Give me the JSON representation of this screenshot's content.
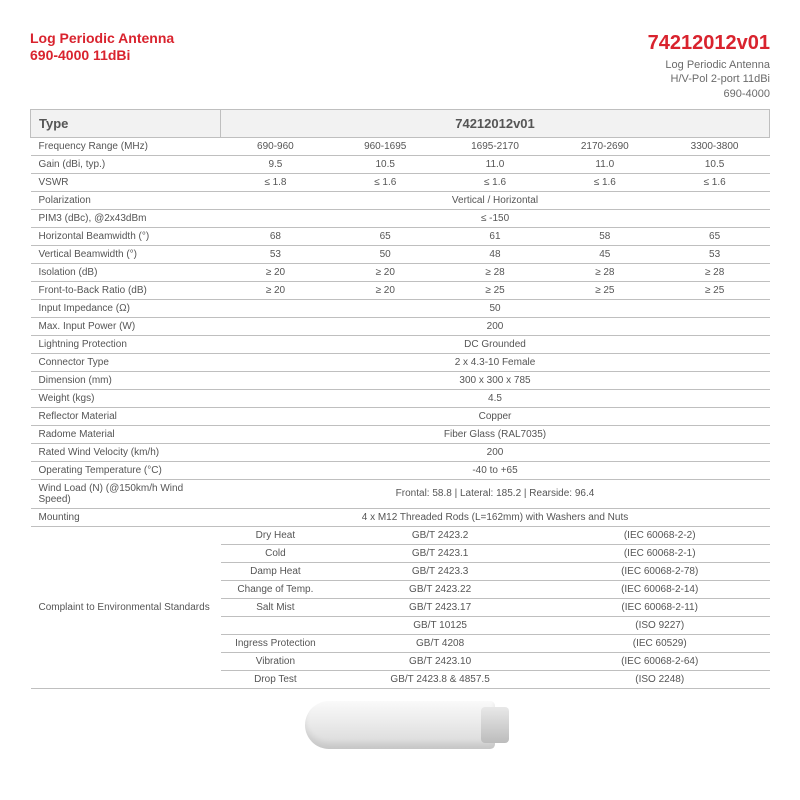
{
  "header": {
    "left_line1": "Log Periodic Antenna",
    "left_line2": "690-4000 11dBi",
    "model": "74212012v01",
    "right_line1": "Log Periodic Antenna",
    "right_line2": "H/V-Pol 2-port 11dBi",
    "right_line3": "690-4000"
  },
  "type_label": "Type",
  "type_value": "74212012v01",
  "multi_rows": [
    {
      "label": "Frequency Range (MHz)",
      "cells": [
        "690-960",
        "960-1695",
        "1695-2170",
        "2170-2690",
        "3300-3800"
      ]
    },
    {
      "label": "Gain (dBi, typ.)",
      "cells": [
        "9.5",
        "10.5",
        "11.0",
        "11.0",
        "10.5"
      ]
    },
    {
      "label": "VSWR",
      "cells": [
        "≤ 1.8",
        "≤ 1.6",
        "≤ 1.6",
        "≤ 1.6",
        "≤ 1.6"
      ]
    }
  ],
  "polarization": {
    "label": "Polarization",
    "value": "Vertical / Horizontal"
  },
  "pim": {
    "label": "PIM3 (dBc), @2x43dBm",
    "value": "≤ -150"
  },
  "multi_rows2": [
    {
      "label": "Horizontal Beamwidth (°)",
      "cells": [
        "68",
        "65",
        "61",
        "58",
        "65"
      ]
    },
    {
      "label": "Vertical Beamwidth (°)",
      "cells": [
        "53",
        "50",
        "48",
        "45",
        "53"
      ]
    },
    {
      "label": "Isolation (dB)",
      "cells": [
        "≥ 20",
        "≥ 20",
        "≥ 28",
        "≥ 28",
        "≥ 28"
      ]
    },
    {
      "label": "Front-to-Back Ratio (dB)",
      "cells": [
        "≥ 20",
        "≥ 20",
        "≥ 25",
        "≥ 25",
        "≥ 25"
      ]
    }
  ],
  "single_rows": [
    {
      "label": "Input Impedance (Ω)",
      "value": "50"
    },
    {
      "label": "Max. Input Power (W)",
      "value": "200"
    },
    {
      "label": "Lightning Protection",
      "value": "DC Grounded"
    },
    {
      "label": "Connector Type",
      "value": "2 x 4.3-10 Female"
    },
    {
      "label": "Dimension (mm)",
      "value": "300 x 300 x 785"
    },
    {
      "label": "Weight (kgs)",
      "value": "4.5"
    },
    {
      "label": "Reflector Material",
      "value": "Copper"
    },
    {
      "label": "Radome Material",
      "value": "Fiber Glass (RAL7035)"
    },
    {
      "label": "Rated Wind Velocity (km/h)",
      "value": "200"
    },
    {
      "label": "Operating Temperature (°C)",
      "value": "-40 to +65"
    },
    {
      "label": "Wind Load (N) (@150km/h Wind Speed)",
      "value": "Frontal: 58.8 | Lateral: 185.2 | Rearside: 96.4"
    },
    {
      "label": "Mounting",
      "value": "4 x M12 Threaded Rods (L=162mm) with Washers and Nuts"
    }
  ],
  "env": {
    "label": "Complaint to Environmental Standards",
    "rows": [
      {
        "name": "Dry Heat",
        "std": "GB/T 2423.2",
        "iec": "(IEC 60068-2-2)"
      },
      {
        "name": "Cold",
        "std": "GB/T 2423.1",
        "iec": "(IEC 60068-2-1)"
      },
      {
        "name": "Damp Heat",
        "std": "GB/T 2423.3",
        "iec": "(IEC 60068-2-78)"
      },
      {
        "name": "Change of Temp.",
        "std": "GB/T 2423.22",
        "iec": "(IEC 60068-2-14)"
      },
      {
        "name": "Salt Mist",
        "std": "GB/T 2423.17",
        "iec": "(IEC 60068-2-11)"
      },
      {
        "name": "",
        "std": "GB/T 10125",
        "iec": "(ISO 9227)"
      },
      {
        "name": "Ingress Protection",
        "std": "GB/T 4208",
        "iec": "(IEC 60529)"
      },
      {
        "name": "Vibration",
        "std": "GB/T 2423.10",
        "iec": "(IEC 60068-2-64)"
      },
      {
        "name": "Drop Test",
        "std": "GB/T 2423.8 & 4857.5",
        "iec": "(ISO 2248)"
      }
    ]
  }
}
